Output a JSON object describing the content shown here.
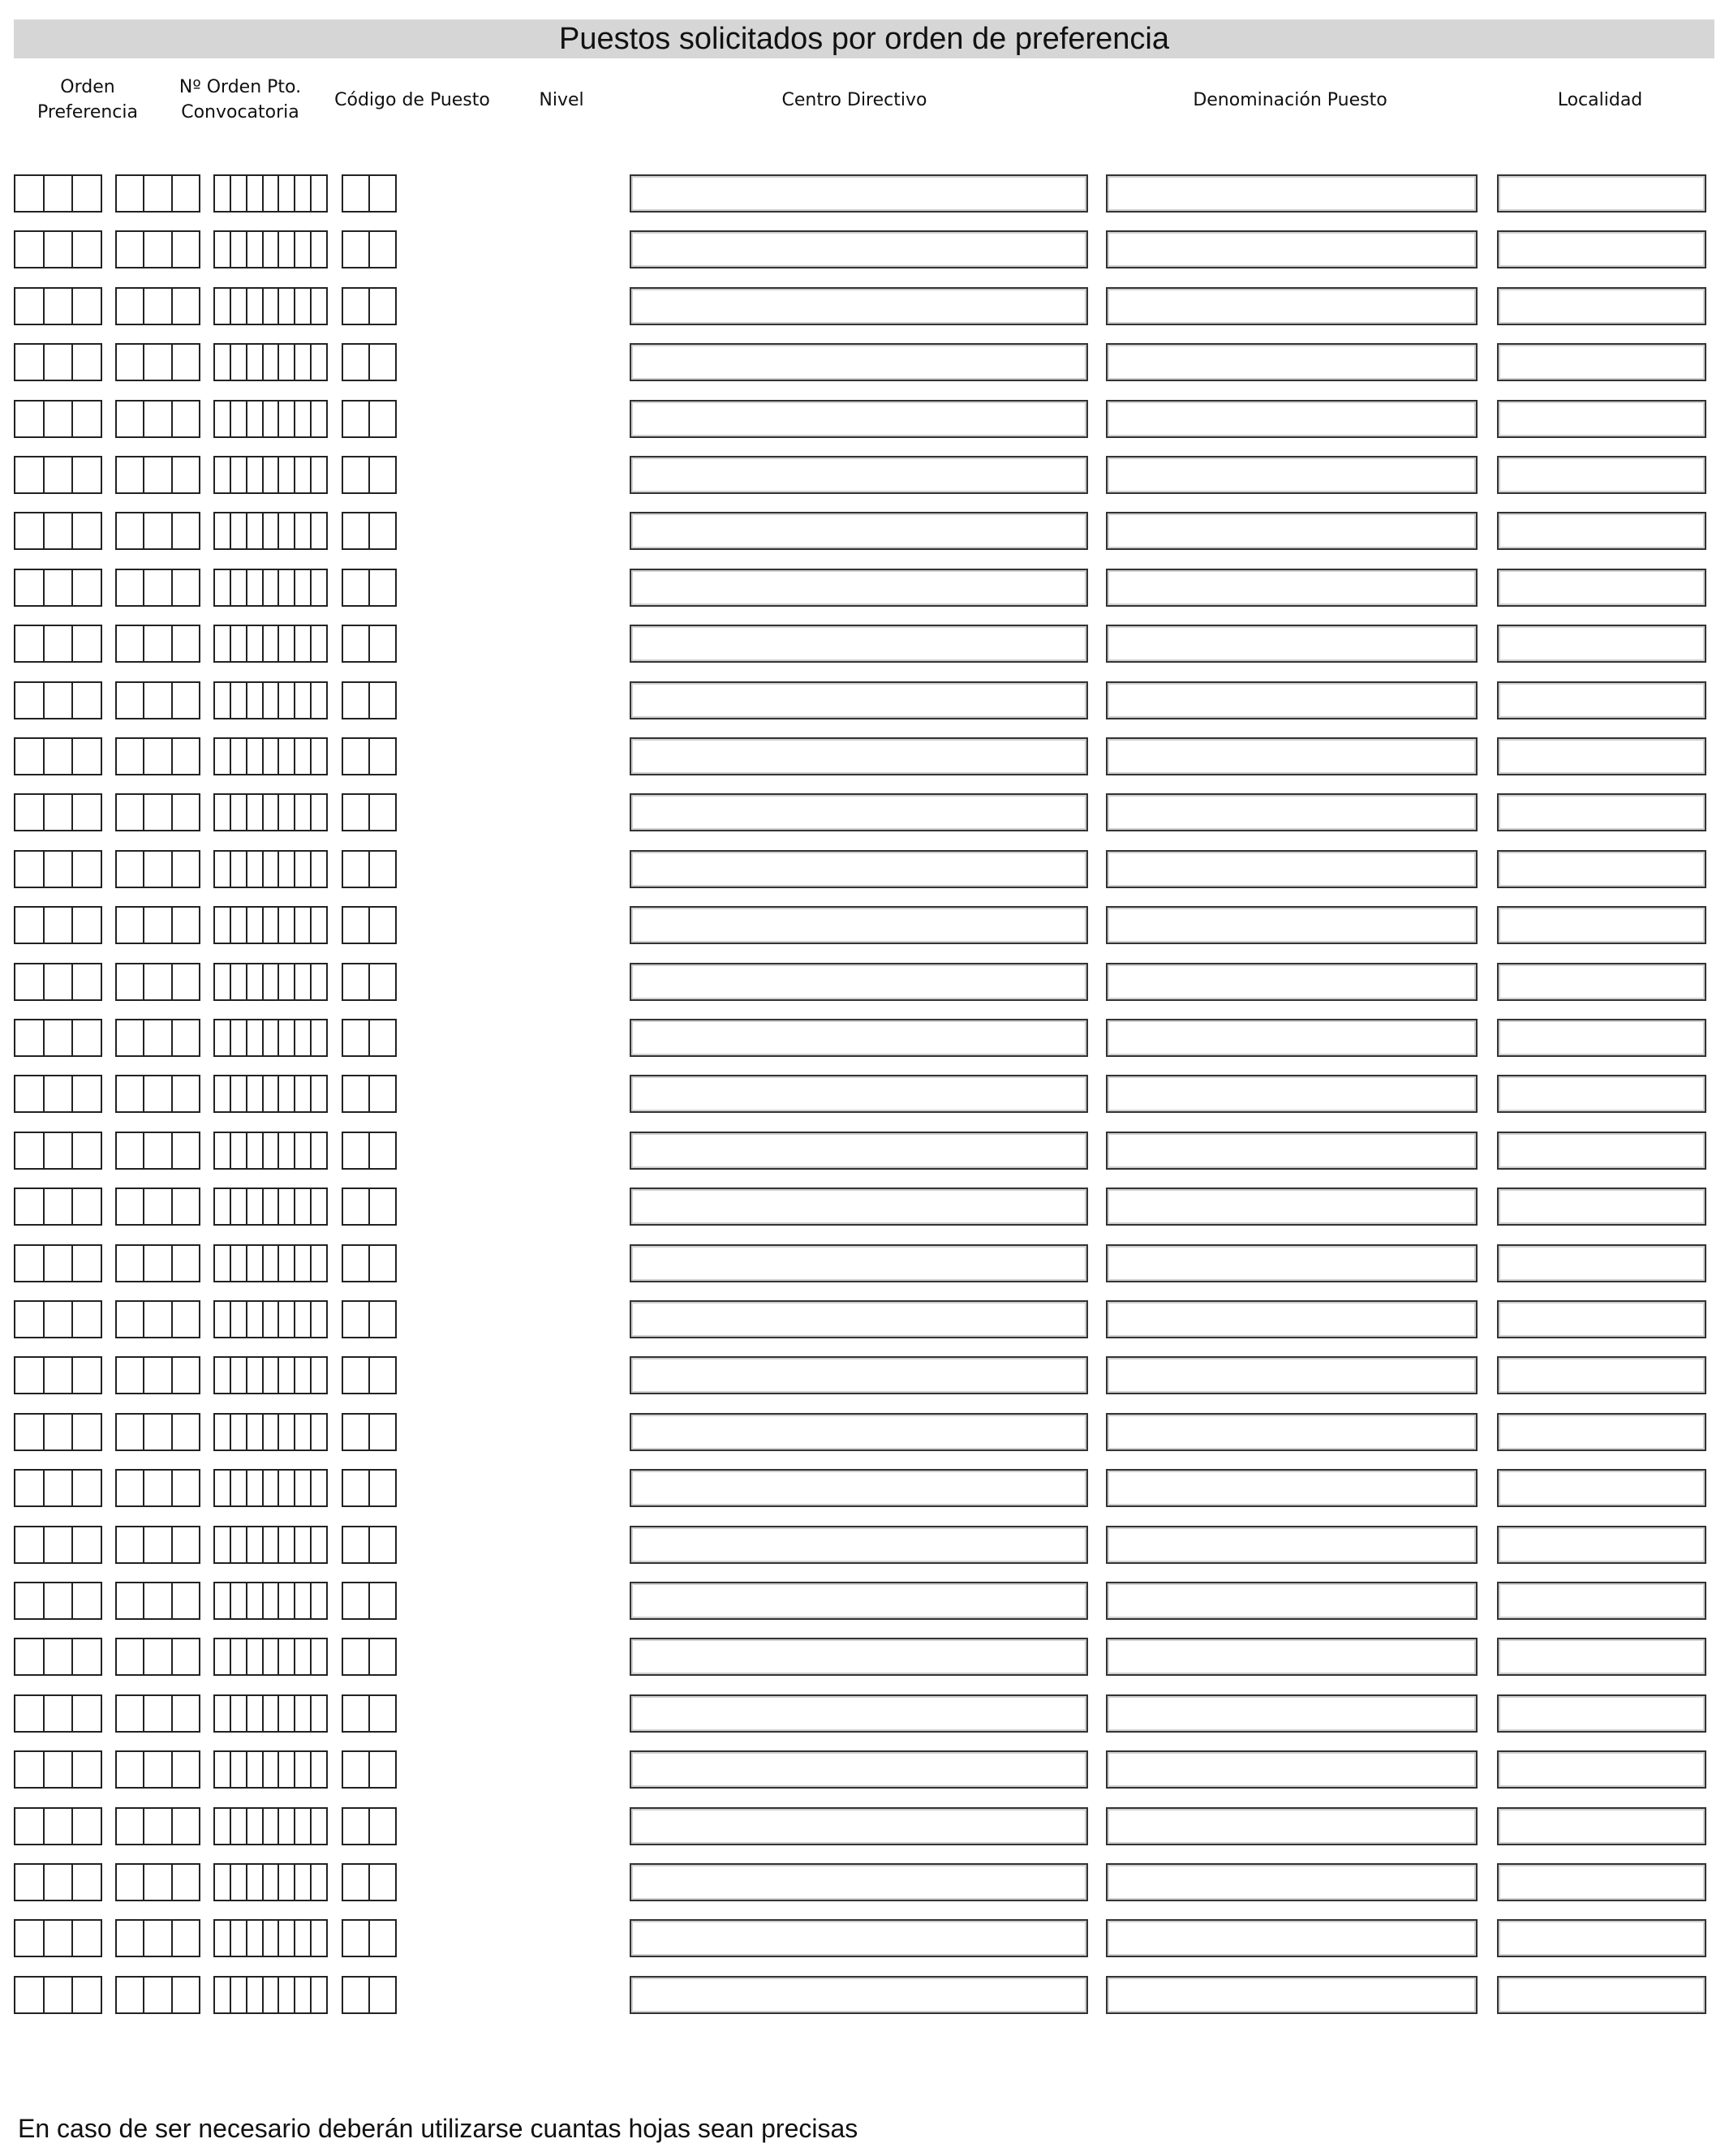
{
  "title": "Puestos solicitados por orden de preferencia",
  "columns": {
    "orden_1": "Orden",
    "orden_2": "Preferencia",
    "num_1": "Nº Orden Pto.",
    "num_2": "Convocatoria",
    "codigo": "Código de Puesto",
    "nivel": "Nivel",
    "centro": "Centro Directivo",
    "denominacion": "Denominación Puesto",
    "localidad": "Localidad"
  },
  "row_count": 33,
  "digit_cells": {
    "orden": 3,
    "numero": 3,
    "codigo": 7,
    "nivel": 2
  },
  "footer": "En caso de ser necesario deberán utilizarse cuantas hojas sean precisas",
  "colors": {
    "title_bar": "#d6d6d6",
    "border": "#222222"
  }
}
